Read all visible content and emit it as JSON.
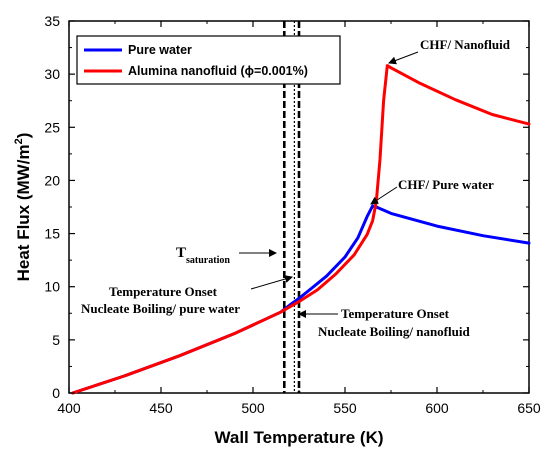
{
  "chart_data": {
    "type": "line",
    "xlabel": "Wall Temperature (K)",
    "ylabel_main": "Heat Flux (MW/m",
    "ylabel_sup": "2",
    "ylabel_close": ")",
    "xlim": [
      400,
      650
    ],
    "ylim": [
      0,
      35
    ],
    "x_ticks": [
      400,
      450,
      500,
      550,
      600,
      650
    ],
    "y_ticks": [
      0,
      5,
      10,
      15,
      20,
      25,
      30,
      35
    ],
    "grid": false,
    "legend_position": "top-left",
    "series": [
      {
        "name": "Pure water",
        "color": "#0000ff",
        "points": [
          [
            402,
            0
          ],
          [
            430,
            1.6
          ],
          [
            460,
            3.5
          ],
          [
            490,
            5.6
          ],
          [
            515,
            7.6
          ],
          [
            521,
            8.4
          ],
          [
            525,
            8.9
          ],
          [
            530,
            9.6
          ],
          [
            540,
            11.0
          ],
          [
            550,
            12.8
          ],
          [
            557,
            14.6
          ],
          [
            562,
            16.6
          ],
          [
            565,
            17.6
          ],
          [
            567,
            17.5
          ],
          [
            575,
            16.9
          ],
          [
            600,
            15.7
          ],
          [
            625,
            14.8
          ],
          [
            650,
            14.1
          ]
        ]
      },
      {
        "name": "Alumina nanofluid (ϕ=0.001%)",
        "color": "#ff0000",
        "points": [
          [
            402,
            0
          ],
          [
            430,
            1.6
          ],
          [
            460,
            3.5
          ],
          [
            490,
            5.6
          ],
          [
            515,
            7.6
          ],
          [
            525,
            8.6
          ],
          [
            535,
            9.7
          ],
          [
            545,
            11.2
          ],
          [
            555,
            13.0
          ],
          [
            562,
            14.9
          ],
          [
            565,
            16.2
          ],
          [
            567,
            18.0
          ],
          [
            569,
            22.0
          ],
          [
            571,
            27.5
          ],
          [
            573,
            30.8
          ],
          [
            575,
            30.6
          ],
          [
            590,
            29.2
          ],
          [
            610,
            27.6
          ],
          [
            630,
            26.2
          ],
          [
            650,
            25.3
          ]
        ]
      }
    ],
    "vlines": [
      {
        "x": 517,
        "style": "dashed"
      },
      {
        "x": 522.5,
        "style": "dotted"
      },
      {
        "x": 525,
        "style": "dashed"
      }
    ],
    "annotations": {
      "chf_nanofluid": "CHF/ Nanofluid",
      "chf_pure": "CHF/ Pure water",
      "tsat_main": "T",
      "tsat_sub": "saturation",
      "onset_pure_line1": "Temperature Onset",
      "onset_pure_line2": "Nucleate Boiling/ pure water",
      "onset_nano_line1": "Temperature Onset",
      "onset_nano_line2": "Nucleate Boiling/ nanofluid"
    }
  }
}
